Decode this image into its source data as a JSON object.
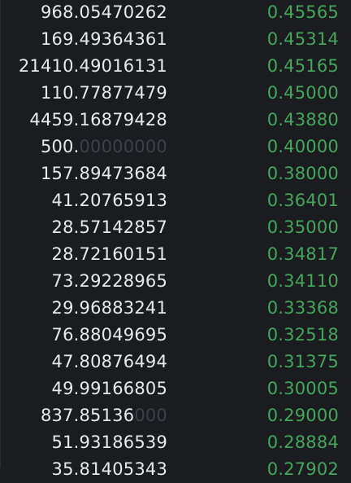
{
  "orderbook": {
    "rows": [
      {
        "amount_main": "968.05470262",
        "amount_dim": "",
        "price": "0.45565"
      },
      {
        "amount_main": "169.49364361",
        "amount_dim": "",
        "price": "0.45314"
      },
      {
        "amount_main": "21410.49016131",
        "amount_dim": "",
        "price": "0.45165"
      },
      {
        "amount_main": "110.77877479",
        "amount_dim": "",
        "price": "0.45000"
      },
      {
        "amount_main": "4459.16879428",
        "amount_dim": "",
        "price": "0.43880"
      },
      {
        "amount_main": "500.",
        "amount_dim": "00000000",
        "price": "0.40000"
      },
      {
        "amount_main": "157.89473684",
        "amount_dim": "",
        "price": "0.38000"
      },
      {
        "amount_main": "41.20765913",
        "amount_dim": "",
        "price": "0.36401"
      },
      {
        "amount_main": "28.57142857",
        "amount_dim": "",
        "price": "0.35000"
      },
      {
        "amount_main": "28.72160151",
        "amount_dim": "",
        "price": "0.34817"
      },
      {
        "amount_main": "73.29228965",
        "amount_dim": "",
        "price": "0.34110"
      },
      {
        "amount_main": "29.96883241",
        "amount_dim": "",
        "price": "0.33368"
      },
      {
        "amount_main": "76.88049695",
        "amount_dim": "",
        "price": "0.32518"
      },
      {
        "amount_main": "47.80876494",
        "amount_dim": "",
        "price": "0.31375"
      },
      {
        "amount_main": "49.99166805",
        "amount_dim": "",
        "price": "0.30005"
      },
      {
        "amount_main": "837.85136",
        "amount_dim": "000",
        "price": "0.29000"
      },
      {
        "amount_main": "51.93186539",
        "amount_dim": "",
        "price": "0.28884"
      },
      {
        "amount_main": "35.81405343",
        "amount_dim": "",
        "price": "0.27902"
      }
    ]
  },
  "colors": {
    "background": "#1b1c20",
    "amount_text": "#e8e9eb",
    "amount_trailing_zeros": "#3e4046",
    "price_text": "#44a65c"
  }
}
